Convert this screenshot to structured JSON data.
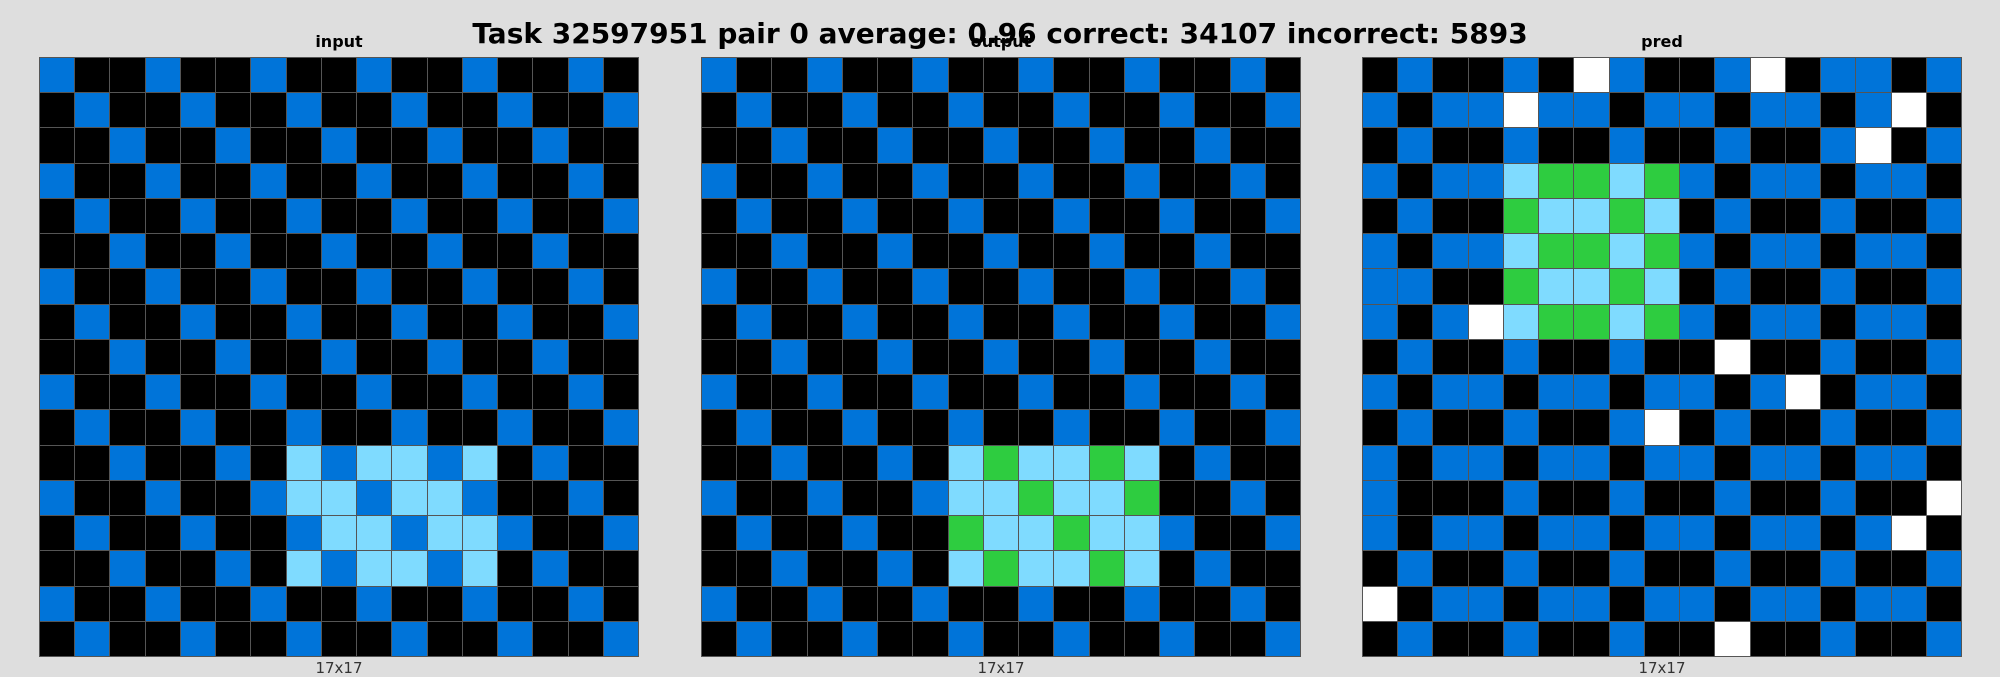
{
  "title": "Task 32597951 pair 0 average: 0.96 correct: 34107 incorrect: 5893",
  "palette": {
    "0": "#000000",
    "1": "#0074D9",
    "3": "#2ECC40",
    "5": "#FFFFFF",
    "8": "#7FDBFF"
  },
  "panels": [
    {
      "label": "input",
      "dims": "17x17",
      "grid": [
        [
          1,
          0,
          0,
          1,
          0,
          0,
          1,
          0,
          0,
          1,
          0,
          0,
          1,
          0,
          0,
          1,
          0
        ],
        [
          0,
          1,
          0,
          0,
          1,
          0,
          0,
          1,
          0,
          0,
          1,
          0,
          0,
          1,
          0,
          0,
          1
        ],
        [
          0,
          0,
          1,
          0,
          0,
          1,
          0,
          0,
          1,
          0,
          0,
          1,
          0,
          0,
          1,
          0,
          0
        ],
        [
          1,
          0,
          0,
          1,
          0,
          0,
          1,
          0,
          0,
          1,
          0,
          0,
          1,
          0,
          0,
          1,
          0
        ],
        [
          0,
          1,
          0,
          0,
          1,
          0,
          0,
          1,
          0,
          0,
          1,
          0,
          0,
          1,
          0,
          0,
          1
        ],
        [
          0,
          0,
          1,
          0,
          0,
          1,
          0,
          0,
          1,
          0,
          0,
          1,
          0,
          0,
          1,
          0,
          0
        ],
        [
          1,
          0,
          0,
          1,
          0,
          0,
          1,
          0,
          0,
          1,
          0,
          0,
          1,
          0,
          0,
          1,
          0
        ],
        [
          0,
          1,
          0,
          0,
          1,
          0,
          0,
          1,
          0,
          0,
          1,
          0,
          0,
          1,
          0,
          0,
          1
        ],
        [
          0,
          0,
          1,
          0,
          0,
          1,
          0,
          0,
          1,
          0,
          0,
          1,
          0,
          0,
          1,
          0,
          0
        ],
        [
          1,
          0,
          0,
          1,
          0,
          0,
          1,
          0,
          0,
          1,
          0,
          0,
          1,
          0,
          0,
          1,
          0
        ],
        [
          0,
          1,
          0,
          0,
          1,
          0,
          0,
          1,
          0,
          0,
          1,
          0,
          0,
          1,
          0,
          0,
          1
        ],
        [
          0,
          0,
          1,
          0,
          0,
          1,
          0,
          8,
          1,
          8,
          8,
          1,
          8,
          0,
          1,
          0,
          0
        ],
        [
          1,
          0,
          0,
          1,
          0,
          0,
          1,
          8,
          8,
          1,
          8,
          8,
          1,
          0,
          0,
          1,
          0
        ],
        [
          0,
          1,
          0,
          0,
          1,
          0,
          0,
          1,
          8,
          8,
          1,
          8,
          8,
          1,
          0,
          0,
          1
        ],
        [
          0,
          0,
          1,
          0,
          0,
          1,
          0,
          8,
          1,
          8,
          8,
          1,
          8,
          0,
          1,
          0,
          0
        ],
        [
          1,
          0,
          0,
          1,
          0,
          0,
          1,
          0,
          0,
          1,
          0,
          0,
          1,
          0,
          0,
          1,
          0
        ],
        [
          0,
          1,
          0,
          0,
          1,
          0,
          0,
          1,
          0,
          0,
          1,
          0,
          0,
          1,
          0,
          0,
          1
        ]
      ]
    },
    {
      "label": "output",
      "dims": "17x17",
      "grid": [
        [
          1,
          0,
          0,
          1,
          0,
          0,
          1,
          0,
          0,
          1,
          0,
          0,
          1,
          0,
          0,
          1,
          0
        ],
        [
          0,
          1,
          0,
          0,
          1,
          0,
          0,
          1,
          0,
          0,
          1,
          0,
          0,
          1,
          0,
          0,
          1
        ],
        [
          0,
          0,
          1,
          0,
          0,
          1,
          0,
          0,
          1,
          0,
          0,
          1,
          0,
          0,
          1,
          0,
          0
        ],
        [
          1,
          0,
          0,
          1,
          0,
          0,
          1,
          0,
          0,
          1,
          0,
          0,
          1,
          0,
          0,
          1,
          0
        ],
        [
          0,
          1,
          0,
          0,
          1,
          0,
          0,
          1,
          0,
          0,
          1,
          0,
          0,
          1,
          0,
          0,
          1
        ],
        [
          0,
          0,
          1,
          0,
          0,
          1,
          0,
          0,
          1,
          0,
          0,
          1,
          0,
          0,
          1,
          0,
          0
        ],
        [
          1,
          0,
          0,
          1,
          0,
          0,
          1,
          0,
          0,
          1,
          0,
          0,
          1,
          0,
          0,
          1,
          0
        ],
        [
          0,
          1,
          0,
          0,
          1,
          0,
          0,
          1,
          0,
          0,
          1,
          0,
          0,
          1,
          0,
          0,
          1
        ],
        [
          0,
          0,
          1,
          0,
          0,
          1,
          0,
          0,
          1,
          0,
          0,
          1,
          0,
          0,
          1,
          0,
          0
        ],
        [
          1,
          0,
          0,
          1,
          0,
          0,
          1,
          0,
          0,
          1,
          0,
          0,
          1,
          0,
          0,
          1,
          0
        ],
        [
          0,
          1,
          0,
          0,
          1,
          0,
          0,
          1,
          0,
          0,
          1,
          0,
          0,
          1,
          0,
          0,
          1
        ],
        [
          0,
          0,
          1,
          0,
          0,
          1,
          0,
          8,
          3,
          8,
          8,
          3,
          8,
          0,
          1,
          0,
          0
        ],
        [
          1,
          0,
          0,
          1,
          0,
          0,
          1,
          8,
          8,
          3,
          8,
          8,
          3,
          0,
          0,
          1,
          0
        ],
        [
          0,
          1,
          0,
          0,
          1,
          0,
          0,
          3,
          8,
          8,
          3,
          8,
          8,
          1,
          0,
          0,
          1
        ],
        [
          0,
          0,
          1,
          0,
          0,
          1,
          0,
          8,
          3,
          8,
          8,
          3,
          8,
          0,
          1,
          0,
          0
        ],
        [
          1,
          0,
          0,
          1,
          0,
          0,
          1,
          0,
          0,
          1,
          0,
          0,
          1,
          0,
          0,
          1,
          0
        ],
        [
          0,
          1,
          0,
          0,
          1,
          0,
          0,
          1,
          0,
          0,
          1,
          0,
          0,
          1,
          0,
          0,
          1
        ]
      ]
    },
    {
      "label": "pred",
      "dims": "17x17",
      "grid": [
        [
          0,
          1,
          0,
          0,
          1,
          0,
          5,
          1,
          0,
          0,
          1,
          5,
          0,
          1,
          1,
          0,
          1
        ],
        [
          1,
          0,
          1,
          1,
          5,
          1,
          1,
          0,
          1,
          1,
          0,
          1,
          1,
          0,
          1,
          5,
          0
        ],
        [
          0,
          1,
          0,
          0,
          1,
          0,
          0,
          1,
          0,
          0,
          1,
          0,
          0,
          1,
          5,
          0,
          1
        ],
        [
          1,
          0,
          1,
          1,
          8,
          3,
          3,
          8,
          3,
          1,
          0,
          1,
          1,
          0,
          1,
          1,
          0
        ],
        [
          0,
          1,
          0,
          0,
          3,
          8,
          8,
          3,
          8,
          0,
          1,
          0,
          0,
          1,
          0,
          0,
          1
        ],
        [
          1,
          0,
          1,
          1,
          8,
          3,
          3,
          8,
          3,
          1,
          0,
          1,
          1,
          0,
          1,
          1,
          0
        ],
        [
          1,
          1,
          0,
          0,
          3,
          8,
          8,
          3,
          8,
          0,
          1,
          0,
          0,
          1,
          0,
          0,
          1
        ],
        [
          1,
          0,
          1,
          5,
          8,
          3,
          3,
          8,
          3,
          1,
          0,
          1,
          1,
          0,
          1,
          1,
          0
        ],
        [
          0,
          1,
          0,
          0,
          1,
          0,
          0,
          1,
          0,
          0,
          5,
          0,
          0,
          1,
          0,
          0,
          1
        ],
        [
          1,
          0,
          1,
          1,
          0,
          1,
          1,
          0,
          1,
          1,
          0,
          1,
          5,
          0,
          1,
          1,
          0
        ],
        [
          0,
          1,
          0,
          0,
          1,
          0,
          0,
          1,
          5,
          0,
          1,
          0,
          0,
          1,
          0,
          0,
          1
        ],
        [
          1,
          0,
          1,
          1,
          0,
          1,
          1,
          0,
          1,
          1,
          0,
          1,
          1,
          0,
          1,
          1,
          0
        ],
        [
          1,
          0,
          0,
          0,
          1,
          0,
          0,
          1,
          0,
          0,
          1,
          0,
          0,
          1,
          0,
          0,
          5
        ],
        [
          1,
          0,
          1,
          1,
          0,
          1,
          1,
          0,
          1,
          1,
          0,
          1,
          1,
          0,
          1,
          5,
          0
        ],
        [
          0,
          1,
          0,
          0,
          1,
          0,
          0,
          1,
          0,
          0,
          1,
          0,
          0,
          1,
          0,
          0,
          1
        ],
        [
          5,
          0,
          1,
          1,
          0,
          1,
          1,
          0,
          1,
          1,
          0,
          1,
          1,
          0,
          1,
          1,
          0
        ],
        [
          0,
          1,
          0,
          0,
          1,
          0,
          0,
          1,
          0,
          0,
          5,
          0,
          0,
          1,
          0,
          0,
          1
        ]
      ]
    }
  ]
}
